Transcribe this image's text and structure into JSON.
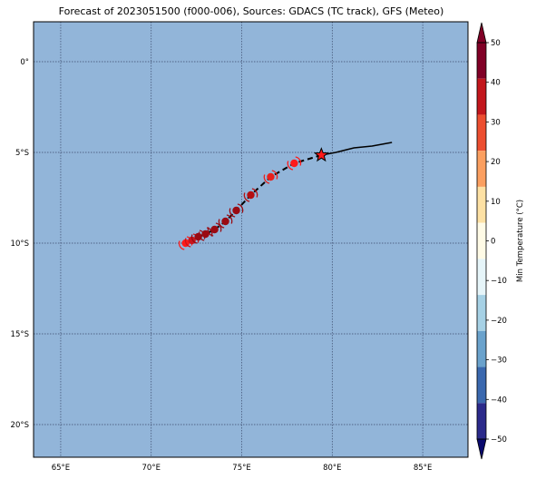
{
  "title": "Forecast of 2023051500 (f000-006), Sources: GDACS (TC track), GFS (Meteo)",
  "map": {
    "lon_range": [
      63.5,
      87.5
    ],
    "lat_range": [
      -21.8,
      2.2
    ],
    "background_color": "#92b5d9",
    "gridlines": true,
    "lon_ticks": [
      {
        "value": 65,
        "label": "65°E"
      },
      {
        "value": 70,
        "label": "70°E"
      },
      {
        "value": 75,
        "label": "75°E"
      },
      {
        "value": 80,
        "label": "80°E"
      },
      {
        "value": 85,
        "label": "85°E"
      }
    ],
    "lat_ticks": [
      {
        "value": 0,
        "label": "0°"
      },
      {
        "value": -5,
        "label": "5°S"
      },
      {
        "value": -10,
        "label": "10°S"
      },
      {
        "value": -15,
        "label": "15°S"
      },
      {
        "value": -20,
        "label": "20°S"
      }
    ]
  },
  "track": {
    "past": [
      [
        83.3,
        -4.45
      ],
      [
        82.2,
        -4.65
      ],
      [
        81.2,
        -4.75
      ],
      [
        80.2,
        -5.0
      ],
      [
        79.4,
        -5.15
      ]
    ],
    "current": {
      "lon": 79.4,
      "lat": -5.15,
      "marker": "star-icon",
      "color": "#ff1a1a"
    },
    "forecast": [
      {
        "lon": 77.9,
        "lat": -5.6,
        "color": "#ff1a1a"
      },
      {
        "lon": 76.6,
        "lat": -6.35,
        "color": "#e8201c"
      },
      {
        "lon": 75.5,
        "lat": -7.35,
        "color": "#b40f12"
      },
      {
        "lon": 74.7,
        "lat": -8.2,
        "color": "#9a0a12"
      },
      {
        "lon": 74.1,
        "lat": -8.8,
        "color": "#9a0a12"
      },
      {
        "lon": 73.5,
        "lat": -9.25,
        "color": "#9a0a12"
      },
      {
        "lon": 73.0,
        "lat": -9.5,
        "color": "#9a0a12"
      },
      {
        "lon": 72.6,
        "lat": -9.65,
        "color": "#9a0a12"
      },
      {
        "lon": 72.25,
        "lat": -9.85,
        "color": "#c9141a"
      },
      {
        "lon": 71.9,
        "lat": -10.0,
        "color": "#ff1a1a"
      }
    ]
  },
  "colorbar": {
    "label": "Min Temperature (°C)",
    "range": [
      -50,
      50
    ],
    "ticks": [
      50,
      40,
      30,
      20,
      10,
      0,
      -10,
      -20,
      -30,
      -40,
      -50
    ],
    "colors_top_to_bottom": [
      "#800026",
      "#c2161c",
      "#ec4e30",
      "#fb9f60",
      "#fde1a4",
      "#fffbe6",
      "#e6f5f9",
      "#a6d1e5",
      "#6aa2cc",
      "#3a68ae",
      "#2b2a8a"
    ],
    "extend_top_color": "#800026",
    "extend_bottom_color": "#0a0a6e"
  }
}
